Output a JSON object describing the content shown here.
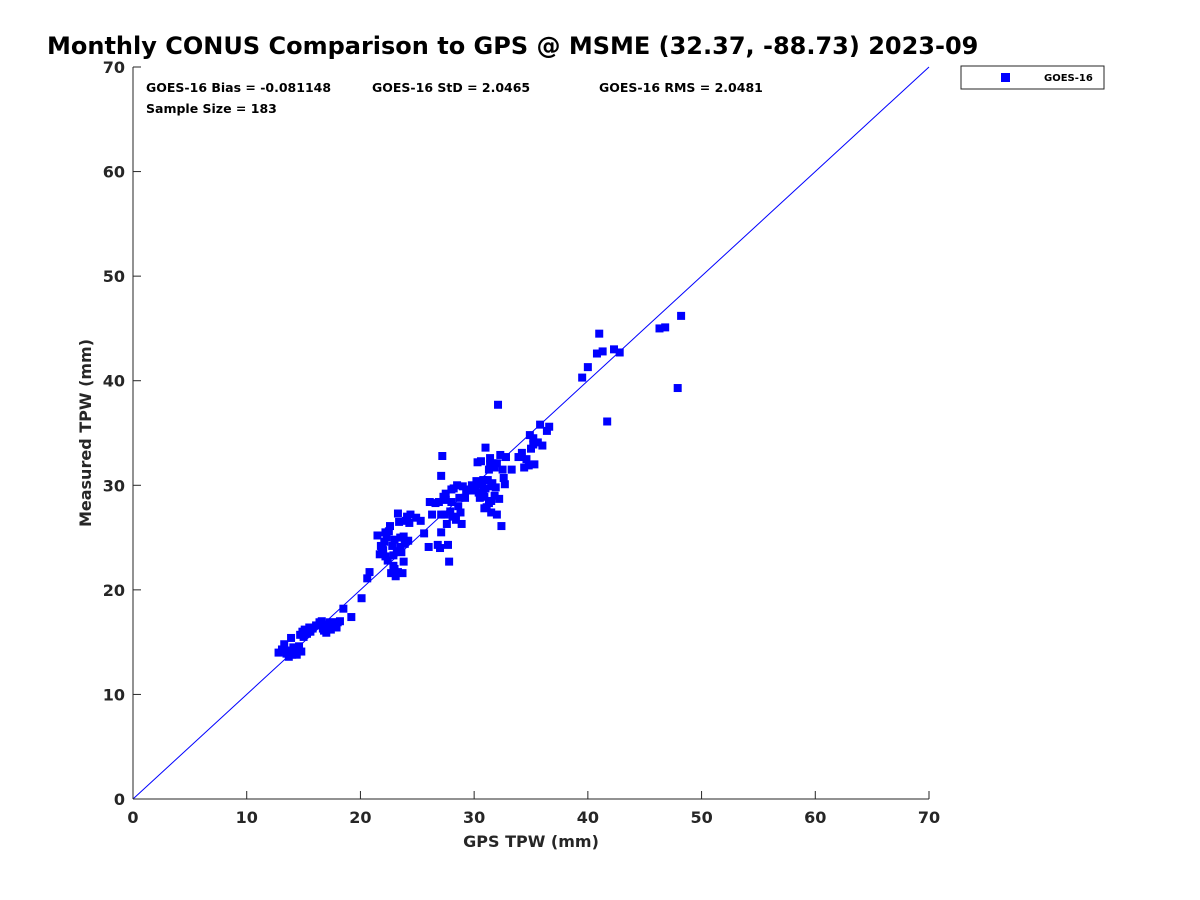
{
  "chart_data": {
    "type": "scatter",
    "title": "Monthly CONUS Comparison to GPS @ MSME (32.37, -88.73) 2023-09",
    "xlabel": "GPS TPW (mm)",
    "ylabel": "Measured TPW (mm)",
    "xlim": [
      0,
      70
    ],
    "ylim": [
      0,
      70
    ],
    "xticks": [
      "0",
      "10",
      "20",
      "30",
      "40",
      "50",
      "60",
      "70"
    ],
    "yticks": [
      "0",
      "10",
      "20",
      "30",
      "40",
      "50",
      "60",
      "70"
    ],
    "grid": false,
    "legend_position": "outside-top-right",
    "reference_line": {
      "name": "1:1",
      "x": [
        0,
        70
      ],
      "y": [
        0,
        70
      ],
      "color": "#0000ff"
    },
    "stats": {
      "bias": "GOES-16 Bias = -0.081148",
      "std": "GOES-16 StD = 2.0465",
      "rms": "GOES-16 RMS = 2.0481",
      "sample_size": "Sample Size = 183"
    },
    "series": [
      {
        "name": "GOES-16",
        "color": "#0000ff",
        "marker": "square",
        "points": [
          [
            12.8,
            14.0
          ],
          [
            13.1,
            14.3
          ],
          [
            13.3,
            14.8
          ],
          [
            13.5,
            13.9
          ],
          [
            13.6,
            14.2
          ],
          [
            13.7,
            13.6
          ],
          [
            13.9,
            15.4
          ],
          [
            14.0,
            13.8
          ],
          [
            14.1,
            14.5
          ],
          [
            14.3,
            14.0
          ],
          [
            14.4,
            13.8
          ],
          [
            14.6,
            14.6
          ],
          [
            14.7,
            15.7
          ],
          [
            14.8,
            14.1
          ],
          [
            14.9,
            16.0
          ],
          [
            15.0,
            15.5
          ],
          [
            15.1,
            16.2
          ],
          [
            15.3,
            15.8
          ],
          [
            15.5,
            16.4
          ],
          [
            15.8,
            16.3
          ],
          [
            16.1,
            16.6
          ],
          [
            16.4,
            16.9
          ],
          [
            16.6,
            17.0
          ],
          [
            16.8,
            16.1
          ],
          [
            16.9,
            16.7
          ],
          [
            17.0,
            15.9
          ],
          [
            17.2,
            16.5
          ],
          [
            17.3,
            16.9
          ],
          [
            17.4,
            16.2
          ],
          [
            17.5,
            16.6
          ],
          [
            17.7,
            16.8
          ],
          [
            17.9,
            16.4
          ],
          [
            18.0,
            16.9
          ],
          [
            18.2,
            17.0
          ],
          [
            18.5,
            18.2
          ],
          [
            19.2,
            17.4
          ],
          [
            20.1,
            19.2
          ],
          [
            20.6,
            21.1
          ],
          [
            20.8,
            21.7
          ],
          [
            21.5,
            25.2
          ],
          [
            21.7,
            23.4
          ],
          [
            21.9,
            24.1
          ],
          [
            22.0,
            23.8
          ],
          [
            22.1,
            24.6
          ],
          [
            22.2,
            23.2
          ],
          [
            22.3,
            25.0
          ],
          [
            22.4,
            22.8
          ],
          [
            22.5,
            25.6
          ],
          [
            22.6,
            26.1
          ],
          [
            22.7,
            21.6
          ],
          [
            22.8,
            24.2
          ],
          [
            22.9,
            23.3
          ],
          [
            23.0,
            22.0
          ],
          [
            23.0,
            24.8
          ],
          [
            23.1,
            21.3
          ],
          [
            23.2,
            23.7
          ],
          [
            23.3,
            27.3
          ],
          [
            23.3,
            21.7
          ],
          [
            23.4,
            26.5
          ],
          [
            23.5,
            24.1
          ],
          [
            23.6,
            23.6
          ],
          [
            23.7,
            21.6
          ],
          [
            23.8,
            22.7
          ],
          [
            23.8,
            25.1
          ],
          [
            23.9,
            24.4
          ],
          [
            24.0,
            26.6
          ],
          [
            24.1,
            27.0
          ],
          [
            24.2,
            24.7
          ],
          [
            24.3,
            26.4
          ],
          [
            24.4,
            27.2
          ],
          [
            25.3,
            26.6
          ],
          [
            25.6,
            25.4
          ],
          [
            26.0,
            24.1
          ],
          [
            26.1,
            28.4
          ],
          [
            26.3,
            27.2
          ],
          [
            26.8,
            24.3
          ],
          [
            26.9,
            28.4
          ],
          [
            27.0,
            24.0
          ],
          [
            27.1,
            25.5
          ],
          [
            27.1,
            30.9
          ],
          [
            27.2,
            32.8
          ],
          [
            27.3,
            28.9
          ],
          [
            27.4,
            27.2
          ],
          [
            27.5,
            29.2
          ],
          [
            27.6,
            26.3
          ],
          [
            27.7,
            24.3
          ],
          [
            27.8,
            22.7
          ],
          [
            27.9,
            27.5
          ],
          [
            28.0,
            28.4
          ],
          [
            28.1,
            27.0
          ],
          [
            28.2,
            29.7
          ],
          [
            28.4,
            26.7
          ],
          [
            28.5,
            30.0
          ],
          [
            28.6,
            28.0
          ],
          [
            28.7,
            28.8
          ],
          [
            28.8,
            27.4
          ],
          [
            28.9,
            26.3
          ],
          [
            29.0,
            29.9
          ],
          [
            29.2,
            28.8
          ],
          [
            29.4,
            29.5
          ],
          [
            29.6,
            29.6
          ],
          [
            29.8,
            30.0
          ],
          [
            30.0,
            29.5
          ],
          [
            30.2,
            30.4
          ],
          [
            30.3,
            32.2
          ],
          [
            30.4,
            29.3
          ],
          [
            30.5,
            28.8
          ],
          [
            30.6,
            32.3
          ],
          [
            30.7,
            30.1
          ],
          [
            30.8,
            29.5
          ],
          [
            30.9,
            28.9
          ],
          [
            30.9,
            27.8
          ],
          [
            31.0,
            29.7
          ],
          [
            31.0,
            33.6
          ],
          [
            31.1,
            27.9
          ],
          [
            31.2,
            30.5
          ],
          [
            31.3,
            28.3
          ],
          [
            31.3,
            31.5
          ],
          [
            31.4,
            32.0
          ],
          [
            31.4,
            32.6
          ],
          [
            31.5,
            29.9
          ],
          [
            31.5,
            27.4
          ],
          [
            31.6,
            30.2
          ],
          [
            31.7,
            32.1
          ],
          [
            31.8,
            31.7
          ],
          [
            31.8,
            29.0
          ],
          [
            32.0,
            27.2
          ],
          [
            32.0,
            32.1
          ],
          [
            32.1,
            37.7
          ],
          [
            32.2,
            28.7
          ],
          [
            32.3,
            32.9
          ],
          [
            32.4,
            26.1
          ],
          [
            32.5,
            31.5
          ],
          [
            32.6,
            30.7
          ],
          [
            32.7,
            30.1
          ],
          [
            32.8,
            32.7
          ],
          [
            33.3,
            31.5
          ],
          [
            33.9,
            32.7
          ],
          [
            34.2,
            33.1
          ],
          [
            34.4,
            31.7
          ],
          [
            34.6,
            32.5
          ],
          [
            34.8,
            31.9
          ],
          [
            34.9,
            34.8
          ],
          [
            35.0,
            33.5
          ],
          [
            35.2,
            33.9
          ],
          [
            35.3,
            32.0
          ],
          [
            35.6,
            34.1
          ],
          [
            35.8,
            35.8
          ],
          [
            36.0,
            33.8
          ],
          [
            36.4,
            35.2
          ],
          [
            36.6,
            35.6
          ],
          [
            39.5,
            40.3
          ],
          [
            40.0,
            41.3
          ],
          [
            40.8,
            42.6
          ],
          [
            41.0,
            44.5
          ],
          [
            41.3,
            42.8
          ],
          [
            41.7,
            36.1
          ],
          [
            42.3,
            43.0
          ],
          [
            42.8,
            42.7
          ],
          [
            46.3,
            45.0
          ],
          [
            46.8,
            45.1
          ],
          [
            47.9,
            39.3
          ],
          [
            48.2,
            46.2
          ],
          [
            13.9,
            13.9
          ],
          [
            14.6,
            14.2
          ],
          [
            15.6,
            16.0
          ],
          [
            16.7,
            16.3
          ],
          [
            17.6,
            16.9
          ],
          [
            21.8,
            24.2
          ],
          [
            22.2,
            25.5
          ],
          [
            23.5,
            25.0
          ],
          [
            26.6,
            28.3
          ],
          [
            27.1,
            27.2
          ],
          [
            28.0,
            29.6
          ],
          [
            29.3,
            29.5
          ],
          [
            30.1,
            29.8
          ],
          [
            30.8,
            30.5
          ],
          [
            31.5,
            28.5
          ],
          [
            31.9,
            29.8
          ],
          [
            35.2,
            34.5
          ],
          [
            22.9,
            22.3
          ],
          [
            24.9,
            26.9
          ],
          [
            27.5,
            28.6
          ]
        ]
      }
    ]
  }
}
